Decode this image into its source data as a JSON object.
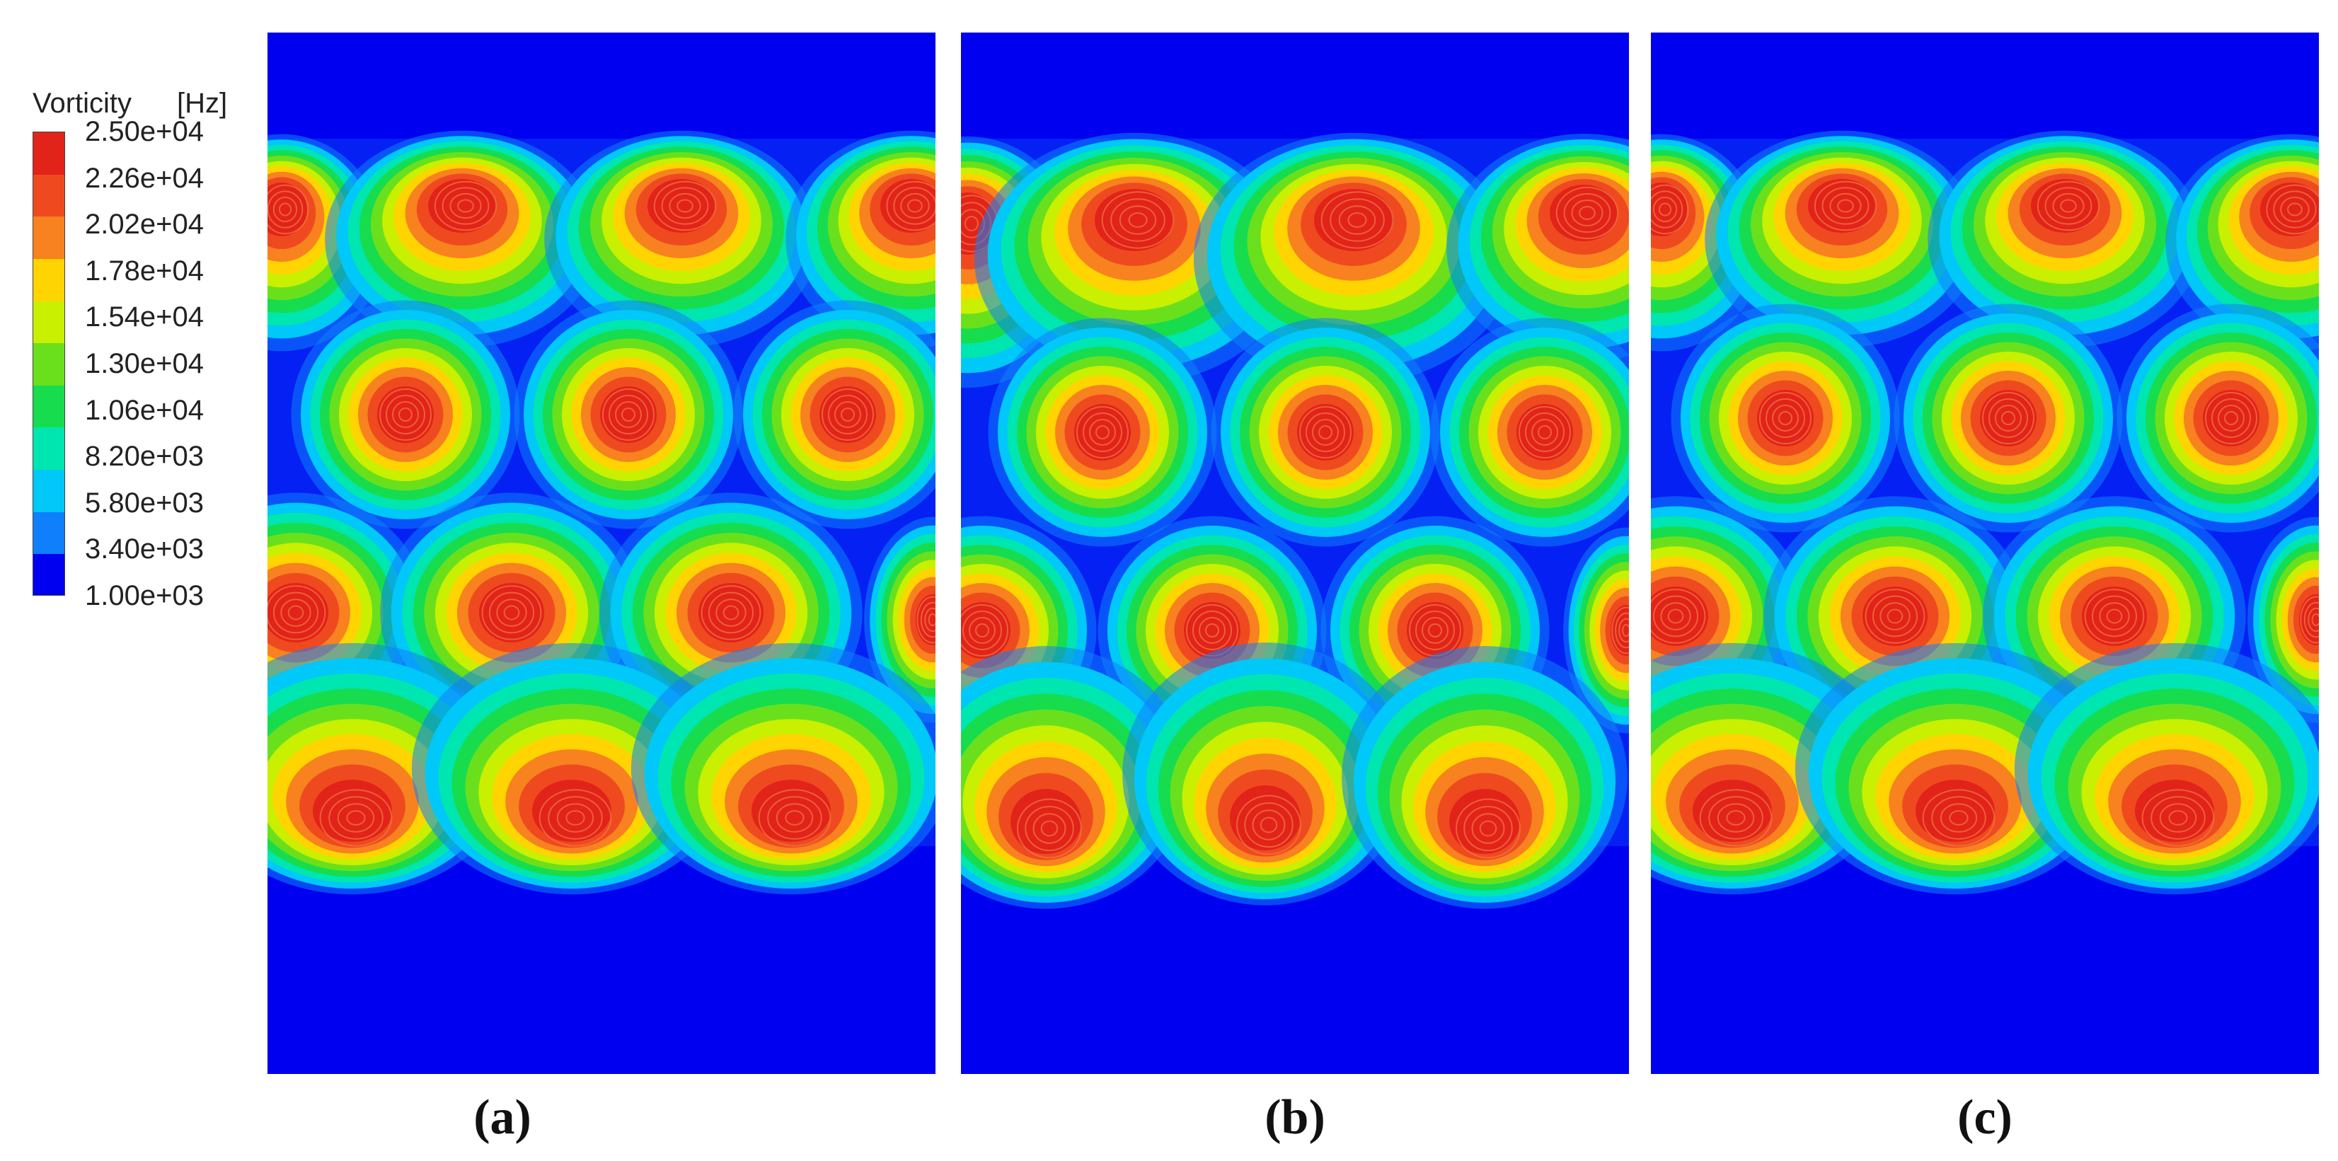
{
  "legend": {
    "title": "Vorticity",
    "unit": "[Hz]",
    "labels": [
      "2.50e+04",
      "2.26e+04",
      "2.02e+04",
      "1.78e+04",
      "1.54e+04",
      "1.30e+04",
      "1.06e+04",
      "8.20e+03",
      "5.80e+03",
      "3.40e+03",
      "1.00e+03"
    ],
    "colors": [
      "#e2231a",
      "#ef4a1f",
      "#f7821f",
      "#ffd400",
      "#c8f000",
      "#6ae01d",
      "#17dc4e",
      "#00e6b0",
      "#00c8f8",
      "#0f7ffb",
      "#0000f0"
    ]
  },
  "panels": [
    {
      "label": "(a)"
    },
    {
      "label": "(b)"
    },
    {
      "label": "(c)"
    }
  ]
}
